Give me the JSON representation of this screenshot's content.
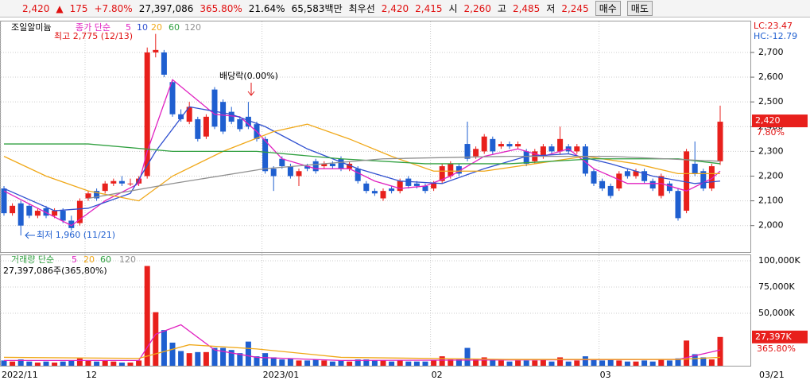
{
  "header": {
    "price": "2,420",
    "arrow": "▲",
    "change": "175",
    "rate": "+7.80%",
    "volume": "27,397,086",
    "volume_rate": "365.80%",
    "turnover": "21.64%",
    "amount": "65,583백만",
    "best_label": "최우선",
    "ask": "2,420",
    "bid": "2,415",
    "open_label": "시",
    "open": "2,260",
    "high_label": "고",
    "high": "2,485",
    "low_label": "저",
    "low": "2,245",
    "buy": "매수",
    "sell": "매도"
  },
  "chart_data": {
    "type": "candlestick",
    "title": "조일알미늄",
    "ma_label": "종가 단순",
    "open": [
      2150,
      2050,
      2090,
      2080,
      2040,
      2070,
      2040,
      2060,
      2020,
      2010,
      2110,
      2140,
      2140,
      2170,
      2180,
      2170,
      2170,
      2200,
      2700,
      2700,
      2580,
      2450,
      2420,
      2430,
      2360,
      2550,
      2500,
      2460,
      2430,
      2440,
      2410,
      2350,
      2230,
      2270,
      2240,
      2200,
      2240,
      2260,
      2240,
      2250,
      2270,
      2230,
      2230,
      2170,
      2140,
      2110,
      2150,
      2140,
      2190,
      2170,
      2160,
      2150,
      2180,
      2200,
      2240,
      2330,
      2280,
      2300,
      2350,
      2320,
      2330,
      2320,
      2300,
      2260,
      2280,
      2320,
      2300,
      2320,
      2300,
      2320,
      2220,
      2180,
      2160,
      2150,
      2220,
      2200,
      2220,
      2180,
      2120,
      2170,
      2140,
      2060,
      2250,
      2220,
      2150,
      2260
    ],
    "high": [
      2160,
      2090,
      2100,
      2090,
      2070,
      2080,
      2070,
      2070,
      2040,
      2110,
      2140,
      2150,
      2180,
      2190,
      2200,
      2190,
      2200,
      2720,
      2775,
      2710,
      2590,
      2470,
      2500,
      2440,
      2450,
      2560,
      2510,
      2480,
      2440,
      2500,
      2420,
      2360,
      2240,
      2280,
      2250,
      2230,
      2250,
      2270,
      2260,
      2260,
      2280,
      2260,
      2240,
      2180,
      2150,
      2150,
      2160,
      2190,
      2200,
      2180,
      2170,
      2180,
      2250,
      2260,
      2250,
      2420,
      2320,
      2370,
      2360,
      2340,
      2340,
      2340,
      2310,
      2310,
      2330,
      2330,
      2400,
      2330,
      2330,
      2330,
      2230,
      2190,
      2170,
      2220,
      2230,
      2230,
      2230,
      2190,
      2210,
      2180,
      2150,
      2310,
      2340,
      2230,
      2250,
      2485
    ],
    "low": [
      2040,
      2040,
      1960,
      2030,
      2030,
      2030,
      2030,
      2010,
      1980,
      2000,
      2100,
      2100,
      2130,
      2160,
      2160,
      2160,
      2160,
      2190,
      2680,
      2600,
      2440,
      2420,
      2410,
      2340,
      2350,
      2390,
      2370,
      2410,
      2380,
      2390,
      2340,
      2210,
      2140,
      2230,
      2190,
      2160,
      2220,
      2210,
      2230,
      2230,
      2220,
      2220,
      2170,
      2130,
      2120,
      2100,
      2130,
      2130,
      2150,
      2150,
      2130,
      2140,
      2170,
      2190,
      2200,
      2260,
      2270,
      2290,
      2290,
      2310,
      2310,
      2310,
      2240,
      2250,
      2270,
      2290,
      2290,
      2290,
      2290,
      2200,
      2160,
      2140,
      2110,
      2140,
      2190,
      2190,
      2170,
      2140,
      2110,
      2130,
      2020,
      2050,
      2200,
      2140,
      2140,
      2245
    ],
    "close": [
      2050,
      2080,
      2000,
      2040,
      2060,
      2040,
      2060,
      2020,
      1990,
      2100,
      2130,
      2110,
      2170,
      2180,
      2170,
      2170,
      2190,
      2700,
      2710,
      2610,
      2450,
      2430,
      2480,
      2350,
      2440,
      2400,
      2380,
      2420,
      2390,
      2400,
      2350,
      2220,
      2200,
      2240,
      2200,
      2220,
      2230,
      2220,
      2250,
      2240,
      2230,
      2250,
      2180,
      2140,
      2130,
      2140,
      2140,
      2180,
      2160,
      2160,
      2140,
      2170,
      2240,
      2250,
      2210,
      2270,
      2310,
      2360,
      2300,
      2330,
      2320,
      2330,
      2250,
      2300,
      2320,
      2300,
      2350,
      2300,
      2320,
      2210,
      2170,
      2150,
      2120,
      2210,
      2200,
      2220,
      2180,
      2150,
      2200,
      2140,
      2030,
      2300,
      2210,
      2150,
      2240,
      2420
    ],
    "volume": [
      5000,
      4000,
      6000,
      4000,
      3000,
      4000,
      3000,
      4000,
      5000,
      7000,
      5000,
      4000,
      5000,
      4000,
      3000,
      3000,
      5000,
      95000,
      51000,
      34000,
      22000,
      14000,
      12000,
      13000,
      13000,
      17000,
      17000,
      15000,
      12000,
      23000,
      9000,
      12000,
      8000,
      6000,
      7000,
      5000,
      5000,
      6000,
      5000,
      4000,
      5000,
      4000,
      6000,
      6000,
      5000,
      5000,
      4000,
      5000,
      4000,
      4000,
      4000,
      5000,
      9000,
      6000,
      6000,
      17000,
      6000,
      8000,
      6000,
      5000,
      4000,
      5000,
      5000,
      5000,
      6000,
      4000,
      8000,
      4000,
      5000,
      9000,
      6000,
      5000,
      6000,
      5000,
      4000,
      4000,
      5000,
      4000,
      6000,
      5000,
      7000,
      24000,
      11000,
      8000,
      6000,
      27397
    ],
    "ma_lines": [
      {
        "name": "5",
        "color": "#e020c0",
        "x": [
          0,
          8,
          12,
          16,
          17,
          20,
          25,
          28,
          30,
          33,
          37,
          41,
          44,
          47,
          50,
          53,
          57,
          61,
          64,
          67,
          70,
          74,
          78,
          81,
          84,
          85
        ],
        "values": [
          2140,
          2000,
          2100,
          2170,
          2300,
          2590,
          2450,
          2440,
          2380,
          2270,
          2230,
          2230,
          2180,
          2150,
          2160,
          2200,
          2280,
          2310,
          2280,
          2310,
          2230,
          2170,
          2170,
          2140,
          2190,
          2220
        ]
      },
      {
        "name": "10",
        "color": "#3050d0",
        "x": [
          0,
          6,
          10,
          15,
          18,
          22,
          27,
          31,
          36,
          42,
          47,
          52,
          57,
          62,
          67,
          72,
          77,
          82,
          85
        ],
        "values": [
          2150,
          2060,
          2070,
          2130,
          2300,
          2480,
          2450,
          2400,
          2310,
          2230,
          2180,
          2170,
          2230,
          2280,
          2290,
          2250,
          2200,
          2170,
          2180
        ]
      },
      {
        "name": "20",
        "color": "#f0a818",
        "x": [
          0,
          5,
          10,
          16,
          20,
          26,
          32,
          36,
          41,
          46,
          51,
          57,
          63,
          69,
          75,
          80,
          85
        ],
        "values": [
          2280,
          2200,
          2140,
          2100,
          2200,
          2300,
          2380,
          2410,
          2350,
          2280,
          2220,
          2220,
          2250,
          2280,
          2250,
          2210,
          2210
        ]
      },
      {
        "name": "60",
        "color": "#30a040",
        "x": [
          0,
          10,
          20,
          30,
          40,
          50,
          60,
          70,
          80,
          85
        ],
        "values": [
          2330,
          2330,
          2300,
          2300,
          2270,
          2250,
          2250,
          2270,
          2270,
          2250
        ]
      },
      {
        "name": "120",
        "color": "#909090",
        "x": [
          10,
          20,
          31,
          45,
          60,
          72,
          85
        ],
        "values": [
          2110,
          2170,
          2230,
          2270,
          2280,
          2280,
          2260
        ]
      }
    ],
    "ylim": [
      1893,
      2822
    ],
    "yticks": [
      {
        "value": 2000,
        "label": "2,000"
      },
      {
        "value": 2100,
        "label": "2,100"
      },
      {
        "value": 2200,
        "label": "2,200"
      },
      {
        "value": 2300,
        "label": "2,300"
      },
      {
        "value": 2400,
        "label": "2,400"
      },
      {
        "value": 2500,
        "label": "2,500"
      },
      {
        "value": 2600,
        "label": "2,600"
      },
      {
        "value": 2700,
        "label": "2,700"
      }
    ],
    "lc": "LC:23.47",
    "hc": "HC:-12.79",
    "last_rate": "7.80%",
    "annotations": [
      "최고 2,775 (12/13)",
      "배당락(0.00%)",
      "최저 1,960 (11/21)"
    ],
    "volume_label": "거래량 단순",
    "volume_legend": [
      "5",
      "20",
      "60",
      "120"
    ],
    "volume_info": "27,397,086주(365,80%)",
    "volume_ma": [
      {
        "color": "#e020c0",
        "x": [
          0,
          16,
          18,
          21,
          25,
          30,
          40,
          80,
          85
        ],
        "values": [
          5000,
          5000,
          30000,
          39000,
          15000,
          8000,
          5000,
          6000,
          15000
        ]
      },
      {
        "color": "#f0a818",
        "x": [
          0,
          16,
          22,
          30,
          40,
          60,
          80,
          85
        ],
        "values": [
          8000,
          7000,
          20000,
          16000,
          8000,
          6000,
          6000,
          8000
        ]
      }
    ],
    "vlim": [
      0,
      104500
    ],
    "vticks": [
      {
        "value": 50000,
        "label": "50,000K"
      },
      {
        "value": 75000,
        "label": "75,000K"
      },
      {
        "value": 100000,
        "label": "100,000K"
      }
    ],
    "last_volume": "27,397K",
    "last_volume_rate": "365.80%",
    "xticks": [
      {
        "value": 0,
        "label": "2022/11"
      },
      {
        "value": 10,
        "label": "12"
      },
      {
        "value": 31,
        "label": "2023/01"
      },
      {
        "value": 51,
        "label": "02"
      },
      {
        "value": 71,
        "label": "03"
      }
    ],
    "last_date": "03/21"
  }
}
